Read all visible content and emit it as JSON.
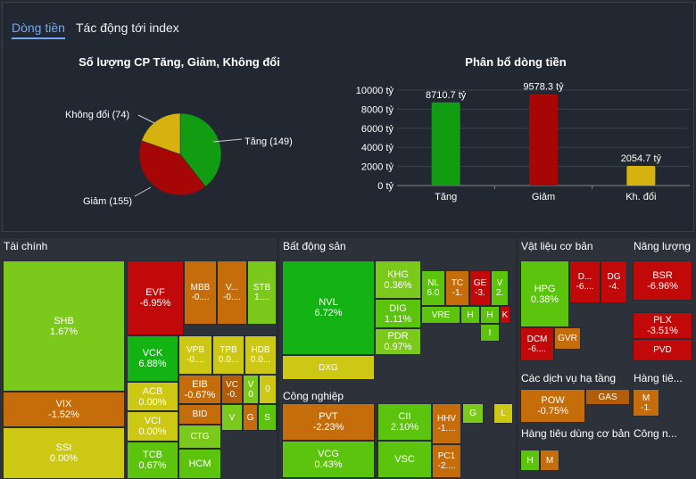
{
  "tabs": [
    "Dòng tiền",
    "Tác động tới index"
  ],
  "pie": {
    "title": "Số lượng CP Tăng, Giảm, Không đổi",
    "slices": [
      {
        "label": "Tăng (149)",
        "value": 149,
        "color": "#129c12"
      },
      {
        "label": "Giảm (155)",
        "value": 155,
        "color": "#a70606"
      },
      {
        "label": "Không đổi (74)",
        "value": 74,
        "color": "#d6b20f"
      }
    ]
  },
  "chart_data": [
    {
      "type": "pie",
      "title": "Số lượng CP Tăng, Giảm, Không đổi",
      "labels": [
        "Tăng (149)",
        "Giảm (155)",
        "Không đổi (74)"
      ],
      "values": [
        149,
        155,
        74
      ]
    },
    {
      "type": "bar",
      "title": "Phân bổ dòng tiền",
      "categories": [
        "Tăng",
        "Giảm",
        "Kh. đổi"
      ],
      "values": [
        8710.7,
        9578.3,
        2054.7
      ],
      "ylim": [
        0,
        10000
      ],
      "yticks": [
        "0 tỷ",
        "2000 tỷ",
        "4000 tỷ",
        "6000 tỷ",
        "8000 tỷ",
        "10000 tỷ"
      ],
      "data_labels": [
        "8710.7 tỷ",
        "9578.3 tỷ",
        "2054.7 tỷ"
      ],
      "colors": [
        "#129c12",
        "#a70606",
        "#d6b20f"
      ]
    }
  ],
  "bar": {
    "title": "Phân bổ dòng tiền"
  },
  "sections": [
    {
      "title": "Tài chính",
      "cells": [
        [
          "SHB",
          "1.67%"
        ],
        [
          "VIX",
          "-1.52%"
        ],
        [
          "SSI",
          "0.00%"
        ],
        [
          "EVF",
          "-6.95%"
        ],
        [
          "VCK",
          "6.88%"
        ],
        [
          "ACB",
          "0.00%"
        ],
        [
          "VCI",
          "0.00%"
        ],
        [
          "TCB",
          "0.67%"
        ],
        [
          "MBB",
          "-0...."
        ],
        [
          "V...",
          "-0...."
        ],
        [
          "STB",
          "1...."
        ],
        [
          "VPB",
          "-0...."
        ],
        [
          "TPB",
          "0.0..."
        ],
        [
          "HDB",
          "0.0..."
        ],
        [
          "EIB",
          "-0.67%"
        ],
        [
          "VC",
          "-0."
        ],
        [
          "V",
          "0"
        ],
        [
          "0",
          ""
        ],
        [
          "BID",
          ""
        ],
        [
          "CTG",
          ""
        ],
        [
          "HCM",
          ""
        ],
        [
          "V",
          ""
        ],
        [
          "G",
          ""
        ],
        [
          "S",
          ""
        ]
      ]
    },
    {
      "title": "Bất động sản",
      "cells": [
        [
          "NVL",
          "6.72%"
        ],
        [
          "DXG",
          ""
        ],
        [
          "KHG",
          "0.36%"
        ],
        [
          "DIG",
          "1.11%"
        ],
        [
          "PDR",
          "0.97%"
        ],
        [
          "NL",
          "6.0"
        ],
        [
          "TC",
          "-1."
        ],
        [
          "GE",
          "-3."
        ],
        [
          "V",
          "2."
        ],
        [
          "VRE",
          ""
        ],
        [
          "H",
          ""
        ],
        [
          "H",
          ""
        ],
        [
          "K",
          ""
        ],
        [
          "I",
          ""
        ]
      ]
    },
    {
      "title": "Công nghiệp",
      "cells": [
        [
          "PVT",
          "-2.23%"
        ],
        [
          "VCG",
          "0.43%"
        ],
        [
          "CII",
          "2.10%"
        ],
        [
          "VSC",
          ""
        ],
        [
          "HHV",
          "-1...."
        ],
        [
          "PC1",
          "-2...."
        ],
        [
          "G",
          ""
        ],
        [
          "L",
          ""
        ]
      ]
    },
    {
      "title": "Vật liệu cơ bản",
      "cells": [
        [
          "HPG",
          "0.38%"
        ],
        [
          "D...",
          "-6...."
        ],
        [
          "DG",
          "-4."
        ],
        [
          "DCM",
          "-6...."
        ],
        [
          "GVR",
          ""
        ]
      ]
    },
    {
      "title": "Năng lượng",
      "cells": [
        [
          "BSR",
          "-6.96%"
        ],
        [
          "PLX",
          "-3.51%"
        ],
        [
          "PVD",
          ""
        ]
      ]
    },
    {
      "title": "Các dịch vụ hạ tầng",
      "cells": [
        [
          "POW",
          "-0.75%"
        ],
        [
          "GAS",
          ""
        ]
      ]
    },
    {
      "title": "Hàng tiê...",
      "cells": [
        [
          "M",
          "-1."
        ]
      ]
    },
    {
      "title": "Hàng tiêu dùng cơ bản",
      "cells": [
        [
          "H",
          ""
        ],
        [
          "M",
          ""
        ]
      ]
    },
    {
      "title": "Công n...",
      "cells": []
    }
  ],
  "colors": {
    "g1": "#12b312",
    "g2": "#5cc40c",
    "g3": "#7bc91a",
    "up": "#33a91a",
    "y": "#ccc813",
    "o": "#c46d0a",
    "o2": "#b25d07",
    "r": "#c10909",
    "r2": "#9e0606",
    "accent": "#74a8f4"
  }
}
